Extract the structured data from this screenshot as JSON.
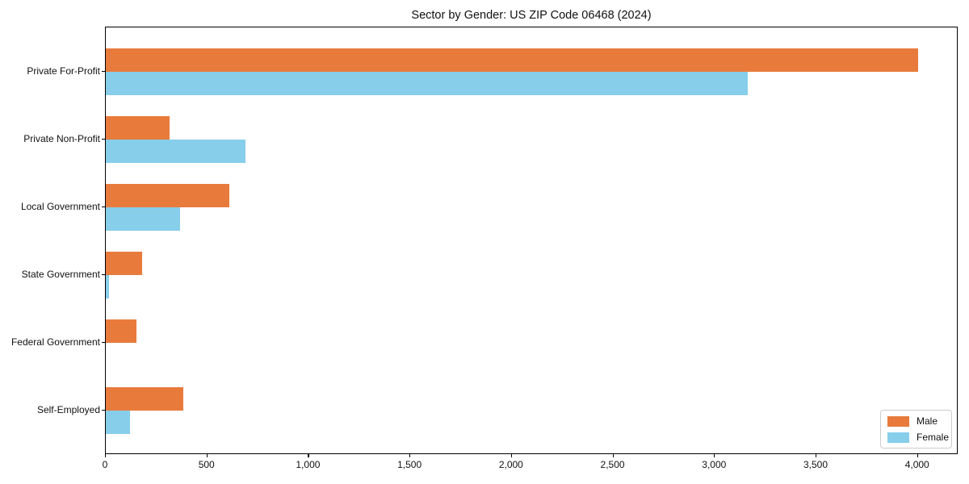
{
  "chart_data": {
    "type": "bar",
    "orientation": "horizontal",
    "title": "Sector by Gender: US ZIP Code 06468 (2024)",
    "categories": [
      "Private For-Profit",
      "Private Non-Profit",
      "Local Government",
      "State Government",
      "Federal Government",
      "Self-Employed"
    ],
    "series": [
      {
        "name": "Male",
        "color": "#e87b3c",
        "values": [
          4000,
          315,
          610,
          180,
          150,
          380
        ]
      },
      {
        "name": "Female",
        "color": "#87ceeb",
        "values": [
          3160,
          690,
          365,
          15,
          0,
          120
        ]
      }
    ],
    "xlim": [
      0,
      4200
    ],
    "xticks": [
      0,
      500,
      1000,
      1500,
      2000,
      2500,
      3000,
      3500,
      4000
    ],
    "xtick_labels": [
      "0",
      "500",
      "1,000",
      "1,500",
      "2,000",
      "2,500",
      "3,000",
      "3,500",
      "4,000"
    ],
    "grid": false,
    "legend": {
      "position": "lower-right"
    },
    "axis_color": "#000000"
  }
}
